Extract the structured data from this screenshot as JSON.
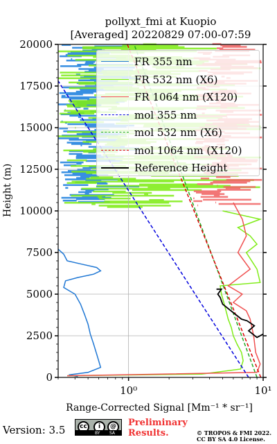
{
  "chart_data": {
    "type": "line",
    "title_line1": "pollyxt_fmi at Kuopio",
    "title_line2": "[Averaged] 20220829 07:00-07:59",
    "xlabel": "Range-Corrected Signal [Mm⁻¹ * sr⁻¹]",
    "ylabel": "Height (m)",
    "x_scale": "log",
    "xlim": [
      0.3,
      10
    ],
    "ylim": [
      0,
      20000
    ],
    "x_ticks": [
      {
        "value": 1,
        "label": "10⁰"
      },
      {
        "value": 10,
        "label": "10¹"
      }
    ],
    "y_ticks": [
      0,
      2500,
      5000,
      7500,
      10000,
      12500,
      15000,
      17500,
      20000
    ],
    "grid": true,
    "legend_position": "top-right",
    "series": [
      {
        "name": "FR 355 nm",
        "color": "#1f77d4",
        "style": "solid",
        "points": [
          [
            0.42,
            50
          ],
          [
            0.36,
            150
          ],
          [
            0.5,
            300
          ],
          [
            0.62,
            600
          ],
          [
            0.6,
            1000
          ],
          [
            0.58,
            1400
          ],
          [
            0.55,
            2000
          ],
          [
            0.52,
            2600
          ],
          [
            0.5,
            3200
          ],
          [
            0.47,
            3800
          ],
          [
            0.44,
            4400
          ],
          [
            0.4,
            5000
          ],
          [
            0.33,
            5400
          ],
          [
            0.34,
            5800
          ],
          [
            0.42,
            6000
          ],
          [
            0.55,
            6200
          ],
          [
            0.62,
            6400
          ],
          [
            0.58,
            6600
          ],
          [
            0.45,
            6800
          ],
          [
            0.35,
            7000
          ],
          [
            0.33,
            7400
          ],
          [
            0.3,
            7700
          ]
        ]
      },
      {
        "name": "FR 532 nm (X6)",
        "color": "#7fec16",
        "style": "solid",
        "points": [
          [
            0.35,
            100
          ],
          [
            3.5,
            200
          ],
          [
            6.8,
            500
          ],
          [
            7.1,
            1000
          ],
          [
            6.9,
            1500
          ],
          [
            6.4,
            2000
          ],
          [
            6.0,
            2500
          ],
          [
            5.8,
            3000
          ],
          [
            5.5,
            3500
          ],
          [
            5.3,
            4000
          ],
          [
            5.1,
            4500
          ],
          [
            4.9,
            5000
          ],
          [
            4.8,
            5500
          ],
          [
            9.5,
            5700
          ],
          [
            9.0,
            6500
          ],
          [
            7.5,
            7500
          ],
          [
            9.0,
            8000
          ],
          [
            8.0,
            8500
          ],
          [
            6.5,
            9000
          ],
          [
            9.5,
            9500
          ],
          [
            5.0,
            10000
          ]
        ]
      },
      {
        "name": "FR 1064 nm (X120)",
        "color": "#f05050",
        "style": "solid",
        "points": [
          [
            0.35,
            100
          ],
          [
            9.0,
            300
          ],
          [
            9.5,
            800
          ],
          [
            8.8,
            1500
          ],
          [
            8.5,
            2500
          ],
          [
            8.0,
            3500
          ],
          [
            7.5,
            4000
          ],
          [
            6.0,
            4500
          ],
          [
            7.0,
            5000
          ],
          [
            5.5,
            5500
          ],
          [
            8.0,
            6500
          ],
          [
            6.5,
            7500
          ],
          [
            7.5,
            8500
          ],
          [
            7.0,
            9500
          ],
          [
            6.0,
            10500
          ]
        ]
      },
      {
        "name": "mol 355 nm",
        "color": "#0000dd",
        "style": "dashed",
        "points": [
          [
            7.8,
            0
          ],
          [
            0.3,
            17800
          ]
        ]
      },
      {
        "name": "mol 532 nm (X6)",
        "color": "#22aa22",
        "style": "dashed",
        "points": [
          [
            9.0,
            0
          ],
          [
            1.1,
            20000
          ]
        ]
      },
      {
        "name": "mol 1064 nm (X120)",
        "color": "#dd0000",
        "style": "dashed",
        "points": [
          [
            9.6,
            0
          ],
          [
            0.98,
            20000
          ]
        ]
      },
      {
        "name": "Reference Height",
        "color": "#000000",
        "style": "solid",
        "points": [
          [
            10.0,
            2600
          ],
          [
            9.0,
            2400
          ],
          [
            7.8,
            2800
          ],
          [
            8.6,
            3100
          ],
          [
            7.6,
            3400
          ],
          [
            6.9,
            3500
          ],
          [
            5.0,
            4400
          ],
          [
            4.8,
            4800
          ],
          [
            4.6,
            5000
          ],
          [
            4.9,
            5300
          ],
          [
            4.5,
            5300
          ]
        ]
      }
    ],
    "noise_bands": [
      {
        "color": "#2f8ae0",
        "y_range": [
          10500,
          20000
        ],
        "x_range": [
          0.3,
          1.2
        ]
      },
      {
        "color": "#7fec16",
        "y_range": [
          10200,
          20000
        ],
        "x_range": [
          0.3,
          9.5
        ]
      },
      {
        "color": "#f06464",
        "y_range": [
          10300,
          20000
        ],
        "x_range": [
          3.0,
          9.8
        ]
      }
    ]
  },
  "footer": {
    "version": "Version: 3.5",
    "license_badge": "cc by sa",
    "license_badge_left": "BY",
    "license_badge_right": "SA",
    "preliminary_line1": "Preliminary",
    "preliminary_line2": "Results.",
    "copyright_line1": "© TROPOS & FMI 2022.",
    "copyright_line2": "CC BY SA 4.0 License."
  }
}
